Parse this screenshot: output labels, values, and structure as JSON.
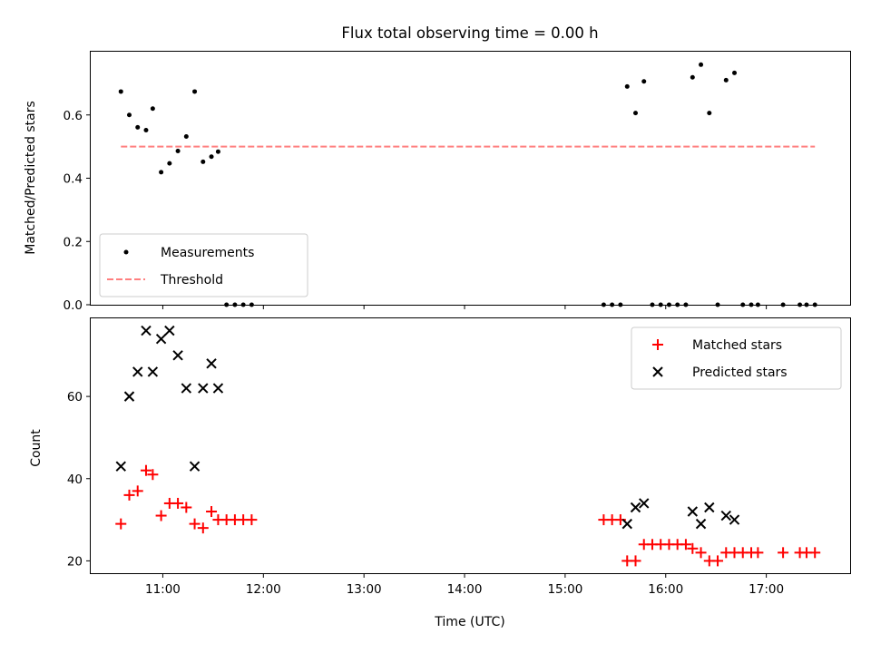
{
  "chart_data": [
    {
      "type": "scatter",
      "title": "Flux total observing time = 0.00 h",
      "xlabel": "",
      "ylabel": "Matched/Predicted stars",
      "xlim": [
        "10:17",
        "17:50"
      ],
      "ylim": [
        0,
        0.8
      ],
      "x_tick_labels": [],
      "y_ticks": [
        0.0,
        0.2,
        0.4,
        0.6
      ],
      "y_tick_labels": [
        "0.0",
        "0.2",
        "0.4",
        "0.6"
      ],
      "legend_position": "lower-left",
      "series": [
        {
          "name": "Measurements",
          "marker": "dot",
          "color": "#000000",
          "points": [
            [
              "10:35",
              0.674
            ],
            [
              "10:40",
              0.6
            ],
            [
              "10:45",
              0.561
            ],
            [
              "10:50",
              0.552
            ],
            [
              "10:54",
              0.62
            ],
            [
              "10:59",
              0.419
            ],
            [
              "11:04",
              0.447
            ],
            [
              "11:09",
              0.486
            ],
            [
              "11:14",
              0.532
            ],
            [
              "11:19",
              0.674
            ],
            [
              "11:24",
              0.452
            ],
            [
              "11:29",
              0.468
            ],
            [
              "11:33",
              0.484
            ],
            [
              "11:38",
              0.0
            ],
            [
              "11:43",
              0.0
            ],
            [
              "11:48",
              0.0
            ],
            [
              "11:53",
              0.0
            ],
            [
              "15:23",
              0.0
            ],
            [
              "15:28",
              0.0
            ],
            [
              "15:33",
              0.0
            ],
            [
              "15:37",
              0.69
            ],
            [
              "15:42",
              0.606
            ],
            [
              "15:47",
              0.706
            ],
            [
              "15:52",
              0.0
            ],
            [
              "15:57",
              0.0
            ],
            [
              "16:02",
              0.0
            ],
            [
              "16:07",
              0.0
            ],
            [
              "16:12",
              0.0
            ],
            [
              "16:16",
              0.719
            ],
            [
              "16:21",
              0.759
            ],
            [
              "16:26",
              0.606
            ],
            [
              "16:31",
              0.0
            ],
            [
              "16:36",
              0.71
            ],
            [
              "16:41",
              0.733
            ],
            [
              "16:46",
              0.0
            ],
            [
              "16:51",
              0.0
            ],
            [
              "16:55",
              0.0
            ],
            [
              "17:10",
              0.0
            ],
            [
              "17:20",
              0.0
            ],
            [
              "17:24",
              0.0
            ],
            [
              "17:29",
              0.0
            ]
          ]
        },
        {
          "name": "Threshold",
          "marker": "dashed-line",
          "color": "#ff7f7f",
          "points": [
            [
              "10:35",
              0.5
            ],
            [
              "17:29",
              0.5
            ]
          ]
        }
      ]
    },
    {
      "type": "scatter",
      "title": "",
      "xlabel": "Time (UTC)",
      "ylabel": "Count",
      "xlim": [
        "10:17",
        "17:50"
      ],
      "ylim": [
        17,
        79
      ],
      "x_ticks": [
        "11:00",
        "12:00",
        "13:00",
        "14:00",
        "15:00",
        "16:00",
        "17:00"
      ],
      "x_tick_labels": [
        "11:00",
        "12:00",
        "13:00",
        "14:00",
        "15:00",
        "16:00",
        "17:00"
      ],
      "y_ticks": [
        20,
        40,
        60
      ],
      "y_tick_labels": [
        "20",
        "40",
        "60"
      ],
      "legend_position": "upper-right",
      "series": [
        {
          "name": "Matched stars",
          "marker": "plus",
          "color": "#ff0000",
          "points": [
            [
              "10:35",
              29
            ],
            [
              "10:40",
              36
            ],
            [
              "10:45",
              37
            ],
            [
              "10:50",
              42
            ],
            [
              "10:54",
              41
            ],
            [
              "10:59",
              31
            ],
            [
              "11:04",
              34
            ],
            [
              "11:09",
              34
            ],
            [
              "11:14",
              33
            ],
            [
              "11:19",
              29
            ],
            [
              "11:24",
              28
            ],
            [
              "11:29",
              32
            ],
            [
              "11:33",
              30
            ],
            [
              "11:38",
              30
            ],
            [
              "11:43",
              30
            ],
            [
              "11:48",
              30
            ],
            [
              "11:53",
              30
            ],
            [
              "15:23",
              30
            ],
            [
              "15:28",
              30
            ],
            [
              "15:33",
              30
            ],
            [
              "15:37",
              20
            ],
            [
              "15:42",
              20
            ],
            [
              "15:47",
              24
            ],
            [
              "15:52",
              24
            ],
            [
              "15:57",
              24
            ],
            [
              "16:02",
              24
            ],
            [
              "16:07",
              24
            ],
            [
              "16:12",
              24
            ],
            [
              "16:16",
              23
            ],
            [
              "16:21",
              22
            ],
            [
              "16:26",
              20
            ],
            [
              "16:31",
              20
            ],
            [
              "16:36",
              22
            ],
            [
              "16:41",
              22
            ],
            [
              "16:46",
              22
            ],
            [
              "16:51",
              22
            ],
            [
              "16:55",
              22
            ],
            [
              "17:10",
              22
            ],
            [
              "17:20",
              22
            ],
            [
              "17:24",
              22
            ],
            [
              "17:29",
              22
            ]
          ]
        },
        {
          "name": "Predicted stars",
          "marker": "x",
          "color": "#000000",
          "points": [
            [
              "10:35",
              43
            ],
            [
              "10:40",
              60
            ],
            [
              "10:45",
              66
            ],
            [
              "10:50",
              76
            ],
            [
              "10:54",
              66
            ],
            [
              "10:59",
              74
            ],
            [
              "11:04",
              76
            ],
            [
              "11:09",
              70
            ],
            [
              "11:14",
              62
            ],
            [
              "11:19",
              43
            ],
            [
              "11:24",
              62
            ],
            [
              "11:29",
              68
            ],
            [
              "11:33",
              62
            ],
            [
              "15:37",
              29
            ],
            [
              "15:42",
              33
            ],
            [
              "15:47",
              34
            ],
            [
              "16:16",
              32
            ],
            [
              "16:21",
              29
            ],
            [
              "16:26",
              33
            ],
            [
              "16:36",
              31
            ],
            [
              "16:41",
              30
            ]
          ]
        }
      ]
    }
  ]
}
